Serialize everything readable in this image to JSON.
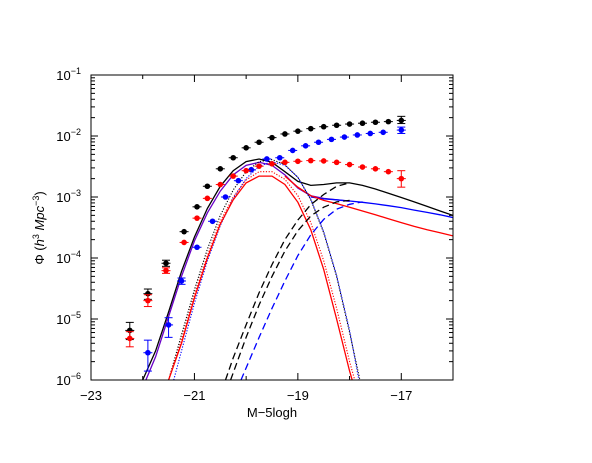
{
  "chart_data": {
    "type": "scatter",
    "title": "",
    "xlabel": "M−5logh",
    "ylabel": {
      "prefix": "Φ (",
      "italic": "h",
      "sup1": "3",
      "mid": " Mpc",
      "sup2": "−3",
      "suffix": ")"
    },
    "xlim": [
      -23,
      -16
    ],
    "ylim": [
      1e-06,
      0.1
    ],
    "yscale": "log",
    "grid": false,
    "legend": "none",
    "x_ticks": [
      {
        "value": -23,
        "label": "−23"
      },
      {
        "value": -21,
        "label": "−21"
      },
      {
        "value": -19,
        "label": "−19"
      },
      {
        "value": -17,
        "label": "−17"
      }
    ],
    "y_ticks": [
      {
        "value": 1e-06,
        "base": "10",
        "exp": "−6"
      },
      {
        "value": 1e-05,
        "base": "10",
        "exp": "−5"
      },
      {
        "value": 0.0001,
        "base": "10",
        "exp": "−4"
      },
      {
        "value": 0.001,
        "base": "10",
        "exp": "−3"
      },
      {
        "value": 0.01,
        "base": "10",
        "exp": "−2"
      },
      {
        "value": 0.1,
        "base": "10",
        "exp": "−1"
      }
    ],
    "colors": {
      "black": "#000000",
      "blue": "#0000ff",
      "red": "#ff0000",
      "purple": "#6a00c8"
    },
    "points": [
      {
        "color": "#000000",
        "data": [
          {
            "x": -22.25,
            "y": 6.5e-06,
            "lo": 4.6e-06,
            "hi": 8.8e-06
          },
          {
            "x": -21.9,
            "y": 2.6e-05,
            "lo": 2.1e-05,
            "hi": 3.1e-05
          },
          {
            "x": -21.55,
            "y": 8.2e-05,
            "lo": 7.3e-05,
            "hi": 9.2e-05
          },
          {
            "x": -21.2,
            "y": 0.00027
          },
          {
            "x": -20.95,
            "y": 0.00069
          },
          {
            "x": -20.75,
            "y": 0.0015
          },
          {
            "x": -20.5,
            "y": 0.0029
          },
          {
            "x": -20.25,
            "y": 0.0044
          },
          {
            "x": -20.0,
            "y": 0.0064
          },
          {
            "x": -19.75,
            "y": 0.0079
          },
          {
            "x": -19.5,
            "y": 0.0094
          },
          {
            "x": -19.25,
            "y": 0.0108
          },
          {
            "x": -19.0,
            "y": 0.012
          },
          {
            "x": -18.75,
            "y": 0.0132
          },
          {
            "x": -18.5,
            "y": 0.0142
          },
          {
            "x": -18.25,
            "y": 0.015
          },
          {
            "x": -18.0,
            "y": 0.0157
          },
          {
            "x": -17.75,
            "y": 0.0162
          },
          {
            "x": -17.5,
            "y": 0.0168
          },
          {
            "x": -17.25,
            "y": 0.0172
          },
          {
            "x": -17.0,
            "y": 0.018,
            "lo": 0.016,
            "hi": 0.021
          }
        ]
      },
      {
        "color": "#0000ff",
        "data": [
          {
            "x": -21.9,
            "y": 2.8e-06,
            "lo": 1.4e-06,
            "hi": 4.5e-06
          },
          {
            "x": -21.5,
            "y": 8e-06,
            "lo": 5e-06,
            "hi": 1.05e-05
          },
          {
            "x": -21.25,
            "y": 4.2e-05,
            "lo": 3.7e-05,
            "hi": 4.7e-05
          },
          {
            "x": -20.95,
            "y": 0.00015
          },
          {
            "x": -20.65,
            "y": 0.0004
          },
          {
            "x": -20.4,
            "y": 0.001
          },
          {
            "x": -20.15,
            "y": 0.00185
          },
          {
            "x": -19.9,
            "y": 0.0028
          },
          {
            "x": -19.6,
            "y": 0.0042
          },
          {
            "x": -19.35,
            "y": 0.0044
          },
          {
            "x": -19.1,
            "y": 0.0058
          },
          {
            "x": -18.85,
            "y": 0.0069
          },
          {
            "x": -18.6,
            "y": 0.0079
          },
          {
            "x": -18.35,
            "y": 0.0088
          },
          {
            "x": -18.1,
            "y": 0.0096
          },
          {
            "x": -17.85,
            "y": 0.0104
          },
          {
            "x": -17.6,
            "y": 0.011
          },
          {
            "x": -17.35,
            "y": 0.0115
          },
          {
            "x": -17.0,
            "y": 0.0125,
            "lo": 0.011,
            "hi": 0.014
          }
        ]
      },
      {
        "color": "#ff0000",
        "data": [
          {
            "x": -22.25,
            "y": 4.8e-06,
            "lo": 3.5e-06,
            "hi": 6.2e-06
          },
          {
            "x": -21.9,
            "y": 2e-05,
            "lo": 1.6e-05,
            "hi": 2.5e-05
          },
          {
            "x": -21.55,
            "y": 6.2e-05,
            "lo": 5.6e-05,
            "hi": 6.9e-05
          },
          {
            "x": -21.2,
            "y": 0.00018
          },
          {
            "x": -20.95,
            "y": 0.00045
          },
          {
            "x": -20.75,
            "y": 0.00095
          },
          {
            "x": -20.5,
            "y": 0.0016
          },
          {
            "x": -20.25,
            "y": 0.0022
          },
          {
            "x": -20.0,
            "y": 0.0027
          },
          {
            "x": -19.75,
            "y": 0.0032
          },
          {
            "x": -19.5,
            "y": 0.0035
          },
          {
            "x": -19.25,
            "y": 0.0037
          },
          {
            "x": -19.0,
            "y": 0.00385
          },
          {
            "x": -18.75,
            "y": 0.00395
          },
          {
            "x": -18.5,
            "y": 0.0039
          },
          {
            "x": -18.25,
            "y": 0.0037
          },
          {
            "x": -18.0,
            "y": 0.0034
          },
          {
            "x": -17.75,
            "y": 0.0031
          },
          {
            "x": -17.5,
            "y": 0.0029
          },
          {
            "x": -17.25,
            "y": 0.0026
          },
          {
            "x": -17.0,
            "y": 0.002,
            "lo": 0.00145,
            "hi": 0.0027
          }
        ]
      }
    ],
    "curves": [
      {
        "color": "#000000",
        "dash": "solid",
        "x": [
          -22.0,
          -21.75,
          -21.5,
          -21.25,
          -21.0,
          -20.75,
          -20.5,
          -20.25,
          -20.0,
          -19.75,
          -19.5,
          -19.25,
          -19.0,
          -18.75,
          -18.5,
          -18.25,
          -18.0,
          -17.75,
          -17.5,
          -17.25,
          -17.0,
          -16.75,
          -16.5,
          -16.25,
          -16.0
        ],
        "y": [
          1e-06,
          3e-06,
          1.3e-05,
          6e-05,
          0.00022,
          0.00065,
          0.0015,
          0.0027,
          0.0038,
          0.0042,
          0.0037,
          0.0026,
          0.0018,
          0.00155,
          0.0016,
          0.0017,
          0.0017,
          0.00155,
          0.00135,
          0.00115,
          0.00098,
          0.00083,
          0.0007,
          0.00059,
          0.0005
        ]
      },
      {
        "color": "#6a00c8",
        "dash": "solid",
        "x": [
          -22.0,
          -21.75,
          -21.5,
          -21.25,
          -21.0,
          -20.75,
          -20.5,
          -20.25,
          -20.0,
          -19.75,
          -19.5,
          -19.25,
          -19.0,
          -18.75,
          -18.5,
          -18.25,
          -18.0
        ],
        "y": [
          7.5e-07,
          2.4e-06,
          1.1e-05,
          5e-05,
          0.00019,
          0.00055,
          0.00125,
          0.0023,
          0.0033,
          0.0037,
          0.0033,
          0.0023,
          0.0014,
          0.00105,
          0.00095,
          0.0009,
          0.00085
        ]
      },
      {
        "color": "#0000ff",
        "dash": "solid",
        "x": [
          -18.75,
          -18.5,
          -18.25,
          -18.0,
          -17.75,
          -17.5,
          -17.25,
          -17.0,
          -16.75,
          -16.5,
          -16.25,
          -16.0
        ],
        "y": [
          0.001,
          0.00093,
          0.0009,
          0.00086,
          0.00082,
          0.00077,
          0.00072,
          0.00067,
          0.00061,
          0.00056,
          0.00051,
          0.00046
        ]
      },
      {
        "color": "#ff0000",
        "dash": "solid",
        "x": [
          -19.25,
          -19.0,
          -18.75,
          -18.5,
          -18.25,
          -18.0,
          -17.75,
          -17.5,
          -17.25,
          -17.0,
          -16.75,
          -16.5,
          -16.25,
          -16.0
        ],
        "y": [
          0.0022,
          0.00145,
          0.00105,
          0.00088,
          0.00078,
          0.00068,
          0.00059,
          0.00051,
          0.00044,
          0.00038,
          0.00033,
          0.00029,
          0.00026,
          0.00023
        ]
      },
      {
        "color": "#000000",
        "dash": "dotted",
        "x": [
          -21.5,
          -21.25,
          -21.0,
          -20.75,
          -20.5,
          -20.25,
          -20.0,
          -19.75,
          -19.5,
          -19.25,
          -19.0,
          -18.75,
          -18.5,
          -18.25,
          -18.0,
          -17.8
        ],
        "y": [
          1e-06,
          5.5e-06,
          3e-05,
          0.00014,
          0.0005,
          0.0013,
          0.0026,
          0.0038,
          0.0041,
          0.0034,
          0.0021,
          0.0009,
          0.00026,
          5e-05,
          6e-06,
          1e-06
        ]
      },
      {
        "color": "#0000ff",
        "dash": "dotted",
        "x": [
          -21.4,
          -21.25,
          -21.0,
          -20.75,
          -20.5,
          -20.25,
          -20.0,
          -19.75,
          -19.5,
          -19.25,
          -19.0,
          -18.75,
          -18.5,
          -18.25,
          -18.0,
          -17.82
        ],
        "y": [
          1e-06,
          3e-06,
          1.8e-05,
          9e-05,
          0.00034,
          0.00095,
          0.002,
          0.0032,
          0.0038,
          0.0033,
          0.0021,
          0.00092,
          0.00027,
          5.2e-05,
          6.5e-06,
          1e-06
        ]
      },
      {
        "color": "#ff0000",
        "dash": "dotted",
        "x": [
          -21.5,
          -21.25,
          -21.0,
          -20.75,
          -20.5,
          -20.25,
          -20.0,
          -19.75,
          -19.5,
          -19.25,
          -19.0,
          -18.75,
          -18.5,
          -18.25,
          -18.0,
          -17.9
        ],
        "y": [
          1e-06,
          4.5e-06,
          2.5e-05,
          0.00011,
          0.0004,
          0.001,
          0.0019,
          0.0026,
          0.0026,
          0.00195,
          0.00105,
          0.00038,
          9e-05,
          1.5e-05,
          2e-06,
          1e-06
        ]
      },
      {
        "color": "#ff0000",
        "dash": "solid",
        "x": [
          -21.5,
          -21.25,
          -21.0,
          -20.75,
          -20.5,
          -20.25,
          -20.0,
          -19.75,
          -19.5,
          -19.25,
          -19.0,
          -18.75,
          -18.5,
          -18.25,
          -18.0,
          -17.95
        ],
        "y": [
          1e-06,
          4e-06,
          2.2e-05,
          0.0001,
          0.00036,
          0.0009,
          0.0017,
          0.0022,
          0.0022,
          0.0016,
          0.00082,
          0.00029,
          6.5e-05,
          1e-05,
          1.4e-06,
          1e-06
        ]
      },
      {
        "color": "#000000",
        "dash": "dashed",
        "x": [
          -20.4,
          -20.25,
          -20.0,
          -19.75,
          -19.5,
          -19.25,
          -19.0,
          -18.75,
          -18.5,
          -18.25,
          -18.0
        ],
        "y": [
          1e-06,
          2.3e-06,
          8e-06,
          2.7e-05,
          7.8e-05,
          0.0002,
          0.00042,
          0.00075,
          0.0011,
          0.0015,
          0.0017
        ]
      },
      {
        "color": "#000000",
        "dash": "dashed",
        "x": [
          -20.3,
          -20.0,
          -19.75,
          -19.5,
          -19.25,
          -19.0,
          -18.75,
          -18.5,
          -18.25,
          -18.0
        ],
        "y": [
          1e-06,
          5e-06,
          1.7e-05,
          5e-05,
          0.00013,
          0.00028,
          0.00049,
          0.00068,
          0.00083,
          0.00088
        ]
      },
      {
        "color": "#0000ff",
        "dash": "dashed",
        "x": [
          -20.1,
          -19.75,
          -19.5,
          -19.25,
          -19.0,
          -18.75,
          -18.5,
          -18.25,
          -18.0,
          -17.75
        ],
        "y": [
          1e-06,
          5e-06,
          1.5e-05,
          4.2e-05,
          0.00011,
          0.00024,
          0.00043,
          0.00063,
          0.00076,
          0.00083
        ]
      }
    ]
  }
}
